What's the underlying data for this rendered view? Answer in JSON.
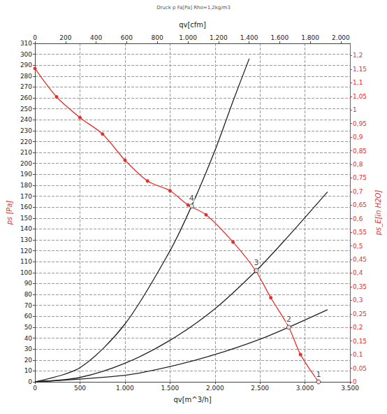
{
  "chart_data": {
    "type": "line",
    "title": "Druck p Fa[Pa] Rho=1,2kg/m3",
    "x_label": "qv[m^3/h]",
    "y_label": "ps [Pa]",
    "x2_label": "qv[cfm]",
    "y2_label": "ps_E[in H2O]",
    "xlim": [
      0,
      3500
    ],
    "xticks": [
      0,
      500,
      {
        "value": 1000,
        "label": "1.000"
      },
      {
        "value": 1500,
        "label": "1.500"
      },
      {
        "value": 2000,
        "label": "2.000"
      },
      {
        "value": 2500,
        "label": "2.500"
      },
      {
        "value": 3000,
        "label": "3.000"
      },
      {
        "value": 3500,
        "label": "3.500"
      }
    ],
    "ylim": [
      0,
      310
    ],
    "yticks": [
      0,
      10,
      20,
      30,
      40,
      50,
      60,
      70,
      80,
      90,
      100,
      110,
      120,
      130,
      140,
      150,
      160,
      170,
      180,
      190,
      200,
      210,
      220,
      230,
      240,
      250,
      260,
      270,
      280,
      290,
      300,
      310
    ],
    "x2lim": [
      0,
      2060
    ],
    "x2ticks": [
      0,
      200,
      400,
      600,
      800,
      {
        "value": 1000,
        "label": "1.000"
      },
      {
        "value": 1200,
        "label": "1.200"
      },
      {
        "value": 1400,
        "label": "1.400"
      },
      {
        "value": 1600,
        "label": "1.600"
      },
      {
        "value": 1800,
        "label": "1.800"
      },
      {
        "value": 2000,
        "label": "2.000"
      }
    ],
    "y2lim": [
      0,
      1.245
    ],
    "y2ticks": [
      0,
      {
        "value": 0.05,
        "label": "0,05"
      },
      {
        "value": 0.1,
        "label": "0,1"
      },
      {
        "value": 0.15,
        "label": "0,15"
      },
      {
        "value": 0.2,
        "label": "0,2"
      },
      {
        "value": 0.25,
        "label": "0,25"
      },
      {
        "value": 0.3,
        "label": "0,3"
      },
      {
        "value": 0.35,
        "label": "0,35"
      },
      {
        "value": 0.4,
        "label": "0,4"
      },
      {
        "value": 0.45,
        "label": "0,45"
      },
      {
        "value": 0.5,
        "label": "0,5"
      },
      {
        "value": 0.55,
        "label": "0,55"
      },
      {
        "value": 0.6,
        "label": "0,6"
      },
      {
        "value": 0.65,
        "label": "0,65"
      },
      {
        "value": 0.7,
        "label": "0,7"
      },
      {
        "value": 0.75,
        "label": "0,75"
      },
      {
        "value": 0.8,
        "label": "0,8"
      },
      {
        "value": 0.85,
        "label": "0,85"
      },
      {
        "value": 0.9,
        "label": "0,9"
      },
      {
        "value": 0.95,
        "label": "0,95"
      },
      1,
      {
        "value": 1.05,
        "label": "1,05"
      },
      {
        "value": 1.1,
        "label": "1,1"
      },
      {
        "value": 1.15,
        "label": "1,15"
      },
      {
        "value": 1.2,
        "label": "1,2"
      }
    ],
    "grid": true,
    "series": [
      {
        "color": "#e8302a",
        "marker": "circle",
        "line_style": "solid",
        "x": [
          0,
          240,
          500,
          750,
          1000,
          1250,
          1500,
          1700,
          1900,
          2200,
          2450,
          2620,
          2820,
          2950,
          3150
        ],
        "values": [
          287,
          261,
          242,
          227,
          203,
          184,
          175,
          162,
          153,
          128,
          102,
          77,
          50,
          25,
          0
        ]
      },
      {
        "color": "#222222",
        "marker": "none",
        "line_style": "solid",
        "x": [
          0,
          500,
          1000,
          1500,
          1740,
          2000,
          2200,
          2380
        ],
        "values": [
          0,
          13,
          53,
          120,
          161,
          212,
          257,
          296
        ]
      },
      {
        "color": "#222222",
        "marker": "none",
        "line_style": "solid",
        "x": [
          0,
          500,
          1000,
          1500,
          2000,
          2460,
          2800,
          3250
        ],
        "values": [
          0,
          4,
          17,
          38,
          67,
          102,
          132,
          174
        ]
      },
      {
        "color": "#222222",
        "marker": "none",
        "line_style": "solid",
        "x": [
          0,
          1000,
          1500,
          2000,
          2500,
          2820,
          3250
        ],
        "values": [
          0,
          6,
          14,
          25,
          39,
          50,
          66
        ]
      }
    ],
    "annotations": [
      {
        "text": "4",
        "x": 1740,
        "y": 161
      },
      {
        "text": "3",
        "x": 2460,
        "y": 102
      },
      {
        "text": "2",
        "x": 2820,
        "y": 50
      },
      {
        "text": "1",
        "x": 3150,
        "y": 0
      }
    ]
  }
}
